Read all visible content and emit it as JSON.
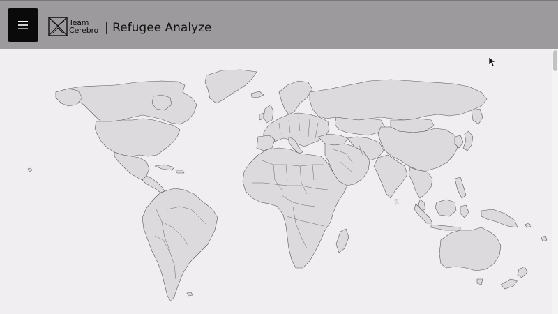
{
  "header": {
    "menu_icon": "hamburger-icon",
    "logo_icon": "team-cerebro-logo-icon",
    "logo_line1": "Team",
    "logo_line2": "Cerebro",
    "title": "| Refugee Analyze"
  },
  "map": {
    "icon": "world-map",
    "land_color": "#dcdadc",
    "border_color": "#5a5a5a",
    "background_color": "#f0eef0"
  },
  "colors": {
    "header_bg": "#9c9a9c",
    "menu_button_bg": "#0a0a0a"
  }
}
